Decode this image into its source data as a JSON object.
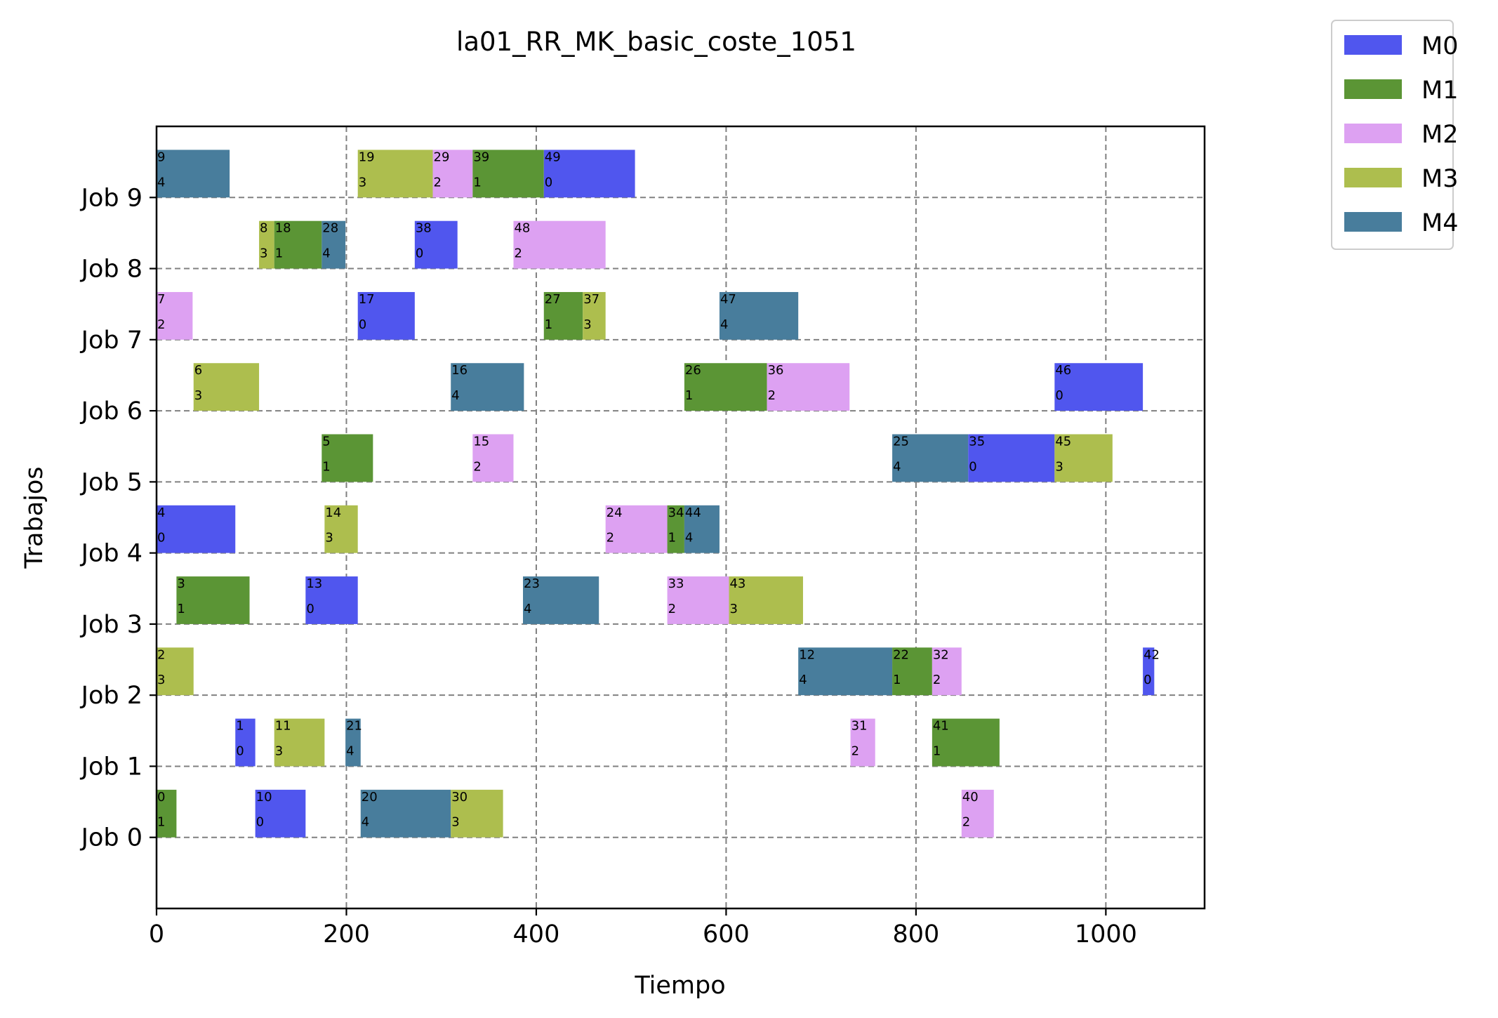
{
  "chart_data": {
    "type": "gantt",
    "title": "la01_RR_MK_basic_coste_1051",
    "xlabel": "Tiempo",
    "ylabel": "Trabajos",
    "xlim": [
      0,
      1104
    ],
    "ylim": [
      -1,
      10
    ],
    "xticks": [
      0,
      200,
      400,
      600,
      800,
      1000
    ],
    "yticks": [
      0,
      1,
      2,
      3,
      4,
      5,
      6,
      7,
      8,
      9
    ],
    "categories": [
      "Job 0",
      "Job 1",
      "Job 2",
      "Job 3",
      "Job 4",
      "Job 5",
      "Job 6",
      "Job 7",
      "Job 8",
      "Job 9"
    ],
    "grid": true,
    "legend_position": "outside top-right",
    "machines": [
      {
        "name": "M0",
        "color": "#5056ee"
      },
      {
        "name": "M1",
        "color": "#5b9535"
      },
      {
        "name": "M2",
        "color": "#dda1f2"
      },
      {
        "name": "M3",
        "color": "#adbe4e"
      },
      {
        "name": "M4",
        "color": "#487d9c"
      }
    ],
    "tasks": [
      {
        "job": 0,
        "id": "0",
        "machine": 1,
        "start": 0,
        "end": 21
      },
      {
        "job": 0,
        "id": "10",
        "machine": 0,
        "start": 104,
        "end": 157
      },
      {
        "job": 0,
        "id": "20",
        "machine": 4,
        "start": 215,
        "end": 310
      },
      {
        "job": 0,
        "id": "30",
        "machine": 3,
        "start": 310,
        "end": 365
      },
      {
        "job": 0,
        "id": "40",
        "machine": 2,
        "start": 848,
        "end": 882
      },
      {
        "job": 1,
        "id": "1",
        "machine": 0,
        "start": 83,
        "end": 104
      },
      {
        "job": 1,
        "id": "11",
        "machine": 3,
        "start": 124,
        "end": 177
      },
      {
        "job": 1,
        "id": "21",
        "machine": 4,
        "start": 199,
        "end": 215
      },
      {
        "job": 1,
        "id": "31",
        "machine": 2,
        "start": 731,
        "end": 757
      },
      {
        "job": 1,
        "id": "41",
        "machine": 1,
        "start": 817,
        "end": 888
      },
      {
        "job": 2,
        "id": "2",
        "machine": 3,
        "start": 0,
        "end": 39
      },
      {
        "job": 2,
        "id": "12",
        "machine": 4,
        "start": 676,
        "end": 775
      },
      {
        "job": 2,
        "id": "22",
        "machine": 1,
        "start": 775,
        "end": 817
      },
      {
        "job": 2,
        "id": "32",
        "machine": 2,
        "start": 817,
        "end": 848
      },
      {
        "job": 2,
        "id": "42",
        "machine": 0,
        "start": 1039,
        "end": 1051
      },
      {
        "job": 3,
        "id": "3",
        "machine": 1,
        "start": 21,
        "end": 98
      },
      {
        "job": 3,
        "id": "13",
        "machine": 0,
        "start": 157,
        "end": 212
      },
      {
        "job": 3,
        "id": "23",
        "machine": 4,
        "start": 386,
        "end": 466
      },
      {
        "job": 3,
        "id": "33",
        "machine": 2,
        "start": 538,
        "end": 603
      },
      {
        "job": 3,
        "id": "43",
        "machine": 3,
        "start": 603,
        "end": 681
      },
      {
        "job": 4,
        "id": "4",
        "machine": 0,
        "start": 0,
        "end": 83
      },
      {
        "job": 4,
        "id": "14",
        "machine": 3,
        "start": 177,
        "end": 212
      },
      {
        "job": 4,
        "id": "24",
        "machine": 2,
        "start": 473,
        "end": 538
      },
      {
        "job": 4,
        "id": "34",
        "machine": 1,
        "start": 538,
        "end": 556
      },
      {
        "job": 4,
        "id": "44",
        "machine": 4,
        "start": 556,
        "end": 593
      },
      {
        "job": 5,
        "id": "5",
        "machine": 1,
        "start": 174,
        "end": 228
      },
      {
        "job": 5,
        "id": "15",
        "machine": 2,
        "start": 333,
        "end": 376
      },
      {
        "job": 5,
        "id": "25",
        "machine": 4,
        "start": 775,
        "end": 855
      },
      {
        "job": 5,
        "id": "35",
        "machine": 0,
        "start": 855,
        "end": 946
      },
      {
        "job": 5,
        "id": "45",
        "machine": 3,
        "start": 946,
        "end": 1007
      },
      {
        "job": 6,
        "id": "6",
        "machine": 3,
        "start": 39,
        "end": 108
      },
      {
        "job": 6,
        "id": "16",
        "machine": 4,
        "start": 310,
        "end": 387
      },
      {
        "job": 6,
        "id": "26",
        "machine": 1,
        "start": 556,
        "end": 643
      },
      {
        "job": 6,
        "id": "36",
        "machine": 2,
        "start": 643,
        "end": 730
      },
      {
        "job": 6,
        "id": "46",
        "machine": 0,
        "start": 946,
        "end": 1039
      },
      {
        "job": 7,
        "id": "7",
        "machine": 2,
        "start": 0,
        "end": 38
      },
      {
        "job": 7,
        "id": "17",
        "machine": 0,
        "start": 212,
        "end": 272
      },
      {
        "job": 7,
        "id": "27",
        "machine": 1,
        "start": 408,
        "end": 449
      },
      {
        "job": 7,
        "id": "37",
        "machine": 3,
        "start": 449,
        "end": 473
      },
      {
        "job": 7,
        "id": "47",
        "machine": 4,
        "start": 593,
        "end": 676
      },
      {
        "job": 8,
        "id": "8",
        "machine": 3,
        "start": 108,
        "end": 124
      },
      {
        "job": 8,
        "id": "18",
        "machine": 1,
        "start": 124,
        "end": 174
      },
      {
        "job": 8,
        "id": "28",
        "machine": 4,
        "start": 174,
        "end": 199
      },
      {
        "job": 8,
        "id": "38",
        "machine": 0,
        "start": 272,
        "end": 317
      },
      {
        "job": 8,
        "id": "48",
        "machine": 2,
        "start": 376,
        "end": 473
      },
      {
        "job": 9,
        "id": "9",
        "machine": 4,
        "start": 0,
        "end": 77
      },
      {
        "job": 9,
        "id": "19",
        "machine": 3,
        "start": 212,
        "end": 291
      },
      {
        "job": 9,
        "id": "29",
        "machine": 2,
        "start": 291,
        "end": 333
      },
      {
        "job": 9,
        "id": "39",
        "machine": 1,
        "start": 333,
        "end": 408
      },
      {
        "job": 9,
        "id": "49",
        "machine": 0,
        "start": 408,
        "end": 504
      }
    ]
  }
}
